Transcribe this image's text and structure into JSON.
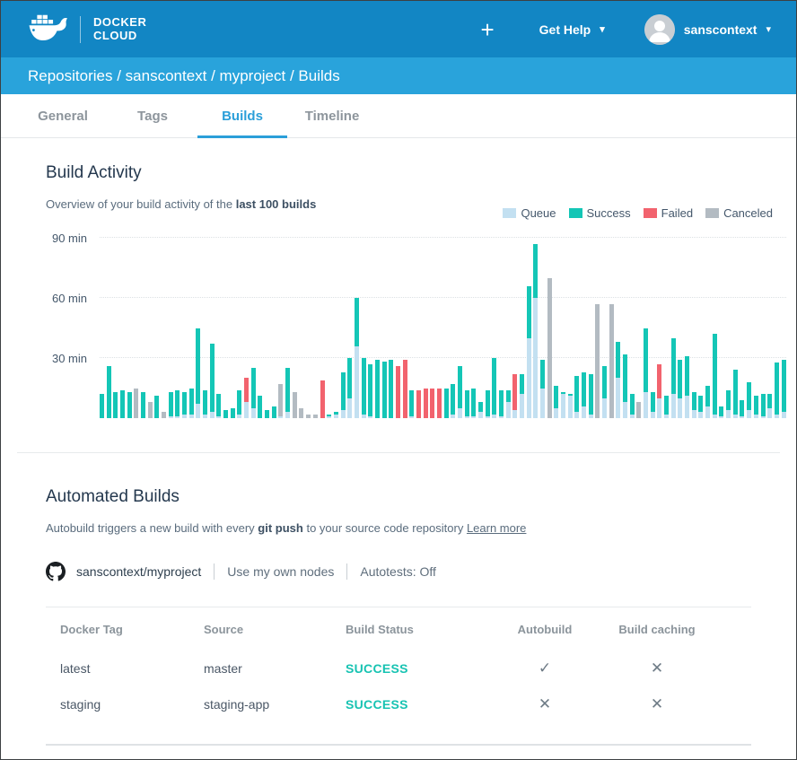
{
  "header": {
    "logo_line1": "DOCKER",
    "logo_line2": "CLOUD",
    "plus_label": "+",
    "get_help_label": "Get Help",
    "username": "sanscontext",
    "caret": "▾",
    "colors": {
      "topbar": "#1286c4",
      "breadcrumb_bar": "#29a3db"
    }
  },
  "breadcrumb": "Repositories / sanscontext / myproject / Builds",
  "tabs": [
    {
      "label": "General",
      "active": false
    },
    {
      "label": "Tags",
      "active": false
    },
    {
      "label": "Builds",
      "active": true
    },
    {
      "label": "Timeline",
      "active": false
    }
  ],
  "build_activity": {
    "title": "Build Activity",
    "subtitle_prefix": "Overview of your build activity of the ",
    "subtitle_bold": "last 100 builds"
  },
  "chart_data": {
    "type": "bar",
    "stacked": true,
    "title": "Build Activity",
    "ylabel": "minutes",
    "ylim": [
      0,
      90
    ],
    "y_ticks": [
      "30 min",
      "60 min",
      "90 min"
    ],
    "grid": "dotted-horizontal",
    "legend_position": "top-right",
    "legend": [
      {
        "label": "Queue",
        "key": "q"
      },
      {
        "label": "Success",
        "key": "s"
      },
      {
        "label": "Failed",
        "key": "f"
      },
      {
        "label": "Canceled",
        "key": "c"
      }
    ],
    "colors": {
      "q": "#c3e0f1",
      "s": "#14c6b6",
      "f": "#f2636e",
      "c": "#b3bbc2"
    },
    "bars_format": "[queue_min, duration_min, status] status: s=success f=failed c=canceled",
    "bars": [
      [
        0,
        12,
        "s"
      ],
      [
        0,
        26,
        "s"
      ],
      [
        0,
        13,
        "s"
      ],
      [
        0,
        14,
        "s"
      ],
      [
        0,
        13,
        "s"
      ],
      [
        0,
        15,
        "c"
      ],
      [
        0,
        13,
        "s"
      ],
      [
        0,
        8,
        "c"
      ],
      [
        0,
        11,
        "s"
      ],
      [
        0,
        3,
        "c"
      ],
      [
        1,
        12,
        "s"
      ],
      [
        1,
        13,
        "s"
      ],
      [
        2,
        11,
        "s"
      ],
      [
        2,
        13,
        "s"
      ],
      [
        7,
        38,
        "s"
      ],
      [
        2,
        12,
        "s"
      ],
      [
        3,
        34,
        "s"
      ],
      [
        1,
        11,
        "s"
      ],
      [
        0,
        4,
        "s"
      ],
      [
        0,
        5,
        "s"
      ],
      [
        2,
        12,
        "s"
      ],
      [
        8,
        12,
        "f"
      ],
      [
        5,
        20,
        "s"
      ],
      [
        0,
        11,
        "s"
      ],
      [
        0,
        4,
        "s"
      ],
      [
        0,
        6,
        "s"
      ],
      [
        1,
        16,
        "c"
      ],
      [
        3,
        22,
        "s"
      ],
      [
        0,
        13,
        "c"
      ],
      [
        0,
        5,
        "c"
      ],
      [
        0,
        2,
        "c"
      ],
      [
        0,
        2,
        "c"
      ],
      [
        0,
        19,
        "f"
      ],
      [
        1,
        1,
        "s"
      ],
      [
        2,
        1,
        "s"
      ],
      [
        4,
        19,
        "s"
      ],
      [
        10,
        20,
        "s"
      ],
      [
        36,
        24,
        "s"
      ],
      [
        2,
        28,
        "s"
      ],
      [
        1,
        26,
        "s"
      ],
      [
        0,
        29,
        "s"
      ],
      [
        0,
        28,
        "s"
      ],
      [
        0,
        29,
        "s"
      ],
      [
        0,
        26,
        "f"
      ],
      [
        0,
        29,
        "f"
      ],
      [
        1,
        13,
        "s"
      ],
      [
        0,
        14,
        "f"
      ],
      [
        0,
        15,
        "f"
      ],
      [
        0,
        15,
        "f"
      ],
      [
        0,
        15,
        "f"
      ],
      [
        0,
        15,
        "s"
      ],
      [
        2,
        15,
        "s"
      ],
      [
        5,
        21,
        "s"
      ],
      [
        1,
        13,
        "s"
      ],
      [
        1,
        14,
        "s"
      ],
      [
        3,
        5,
        "s"
      ],
      [
        1,
        13,
        "s"
      ],
      [
        2,
        28,
        "s"
      ],
      [
        1,
        13,
        "s"
      ],
      [
        8,
        6,
        "s"
      ],
      [
        4,
        18,
        "f"
      ],
      [
        12,
        10,
        "s"
      ],
      [
        40,
        26,
        "s"
      ],
      [
        60,
        27,
        "s"
      ],
      [
        15,
        14,
        "s"
      ],
      [
        0,
        70,
        "c"
      ],
      [
        5,
        11,
        "s"
      ],
      [
        12,
        1,
        "s"
      ],
      [
        11,
        1,
        "s"
      ],
      [
        3,
        18,
        "s"
      ],
      [
        6,
        17,
        "s"
      ],
      [
        2,
        20,
        "s"
      ],
      [
        0,
        57,
        "c"
      ],
      [
        10,
        16,
        "s"
      ],
      [
        0,
        57,
        "c"
      ],
      [
        20,
        18,
        "s"
      ],
      [
        8,
        24,
        "s"
      ],
      [
        2,
        10,
        "s"
      ],
      [
        0,
        8,
        "c"
      ],
      [
        13,
        32,
        "s"
      ],
      [
        3,
        10,
        "s"
      ],
      [
        10,
        17,
        "f"
      ],
      [
        2,
        9,
        "s"
      ],
      [
        12,
        28,
        "s"
      ],
      [
        10,
        19,
        "s"
      ],
      [
        11,
        20,
        "s"
      ],
      [
        4,
        9,
        "s"
      ],
      [
        3,
        8,
        "s"
      ],
      [
        6,
        10,
        "s"
      ],
      [
        2,
        40,
        "s"
      ],
      [
        1,
        5,
        "s"
      ],
      [
        4,
        10,
        "s"
      ],
      [
        2,
        22,
        "s"
      ],
      [
        1,
        8,
        "s"
      ],
      [
        4,
        14,
        "s"
      ],
      [
        2,
        9,
        "s"
      ],
      [
        1,
        11,
        "s"
      ],
      [
        5,
        7,
        "s"
      ],
      [
        2,
        26,
        "s"
      ],
      [
        3,
        26,
        "s"
      ]
    ]
  },
  "automated_builds": {
    "title": "Automated Builds",
    "desc_prefix": "Autobuild triggers a new build with every ",
    "desc_bold": "git push",
    "desc_suffix": " to your source code repository ",
    "learn_more": "Learn more",
    "repo_name": "sanscontext/myproject",
    "nodes_label": "Use my own nodes",
    "autotests_label": "Autotests: Off"
  },
  "table": {
    "headers": [
      "Docker Tag",
      "Source",
      "Build Status",
      "Autobuild",
      "Build caching"
    ],
    "rows": [
      {
        "docker_tag": "latest",
        "source": "master",
        "build_status": "SUCCESS",
        "autobuild": "✓",
        "build_caching": "✕"
      },
      {
        "docker_tag": "staging",
        "source": "staging-app",
        "build_status": "SUCCESS",
        "autobuild": "✕",
        "build_caching": "✕"
      }
    ],
    "status_color": "#17c3b2"
  }
}
